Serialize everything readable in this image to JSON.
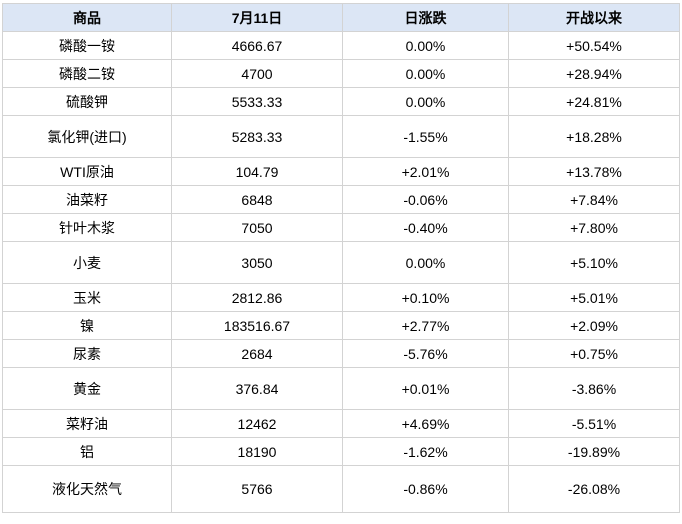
{
  "chart_data": {
    "type": "table",
    "columns": [
      "商品",
      "7月11日",
      "日涨跌",
      "开战以来"
    ],
    "rows": [
      {
        "name": "磷酸一铵",
        "price": "4666.67",
        "daily": "0.00%",
        "daily_dir": "flat",
        "since": "+50.54%",
        "since_dir": "up",
        "tall": false
      },
      {
        "name": "磷酸二铵",
        "price": "4700",
        "daily": "0.00%",
        "daily_dir": "flat",
        "since": "+28.94%",
        "since_dir": "up",
        "tall": false
      },
      {
        "name": "硫酸钾",
        "price": "5533.33",
        "daily": "0.00%",
        "daily_dir": "flat",
        "since": "+24.81%",
        "since_dir": "up",
        "tall": false
      },
      {
        "name": "氯化钾(进口)",
        "price": "5283.33",
        "daily": "-1.55%",
        "daily_dir": "down",
        "since": "+18.28%",
        "since_dir": "up",
        "tall": true
      },
      {
        "name": "WTI原油",
        "price": "104.79",
        "daily": "+2.01%",
        "daily_dir": "up",
        "since": "+13.78%",
        "since_dir": "up",
        "tall": false
      },
      {
        "name": "油菜籽",
        "price": "6848",
        "daily": "-0.06%",
        "daily_dir": "down",
        "since": "+7.84%",
        "since_dir": "up",
        "tall": false
      },
      {
        "name": "针叶木浆",
        "price": "7050",
        "daily": "-0.40%",
        "daily_dir": "down",
        "since": "+7.80%",
        "since_dir": "up",
        "tall": false
      },
      {
        "name": "小麦",
        "price": "3050",
        "daily": "0.00%",
        "daily_dir": "flat",
        "since": "+5.10%",
        "since_dir": "up",
        "tall": true
      },
      {
        "name": "玉米",
        "price": "2812.86",
        "daily": "+0.10%",
        "daily_dir": "up",
        "since": "+5.01%",
        "since_dir": "up",
        "tall": false
      },
      {
        "name": "镍",
        "price": "183516.67",
        "daily": "+2.77%",
        "daily_dir": "up",
        "since": "+2.09%",
        "since_dir": "up",
        "tall": false
      },
      {
        "name": "尿素",
        "price": "2684",
        "daily": "-5.76%",
        "daily_dir": "down",
        "since": "+0.75%",
        "since_dir": "up",
        "tall": false
      },
      {
        "name": "黄金",
        "price": "376.84",
        "daily": "+0.01%",
        "daily_dir": "up",
        "since": "-3.86%",
        "since_dir": "down",
        "tall": true
      },
      {
        "name": "菜籽油",
        "price": "12462",
        "daily": "+4.69%",
        "daily_dir": "up",
        "since": "-5.51%",
        "since_dir": "down",
        "tall": false
      },
      {
        "name": "铝",
        "price": "18190",
        "daily": "-1.62%",
        "daily_dir": "down",
        "since": "-19.89%",
        "since_dir": "down",
        "tall": false
      },
      {
        "name": "液化天然气",
        "price": "5766",
        "daily": "-0.86%",
        "daily_dir": "down",
        "since": "-26.08%",
        "since_dir": "down",
        "tall": true
      }
    ]
  },
  "colors": {
    "up": "#fe0000",
    "down": "#009a00",
    "flat": "#000000",
    "header_bg": "#dce6f5",
    "border": "#d3d3d3"
  }
}
